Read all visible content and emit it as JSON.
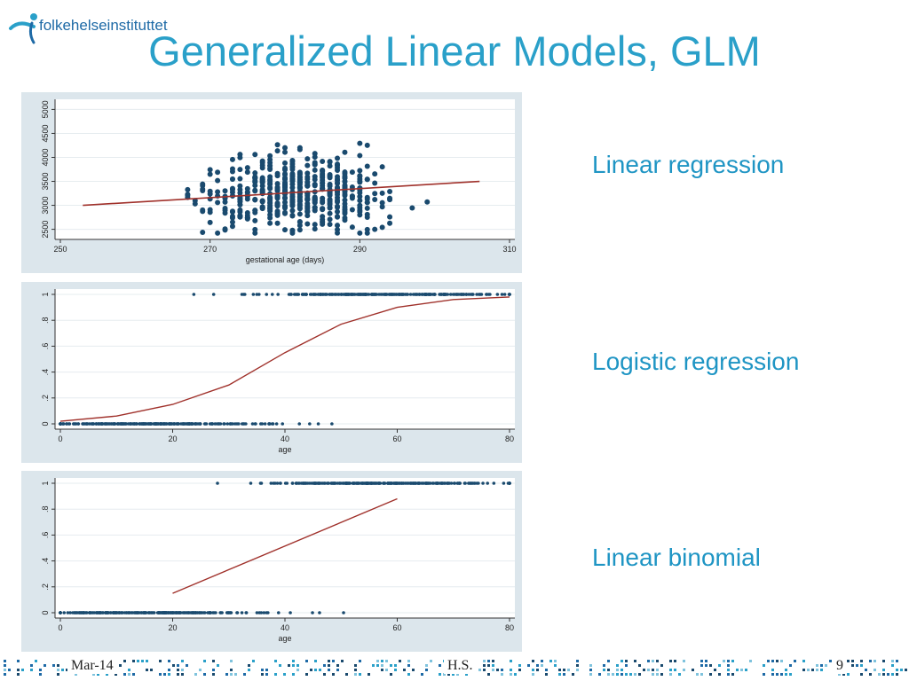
{
  "logo": {
    "text": "folkehelseinstituttet",
    "icon": "fhi-logo-icon"
  },
  "title": "Generalized Linear Models, GLM",
  "captions": {
    "linear": "Linear regression",
    "logistic": "Logistic regression",
    "binomial": "Linear binomial"
  },
  "footer": {
    "date": "Mar-14",
    "author": "H.S.",
    "page": "9"
  },
  "colors": {
    "title": "#2aa0c9",
    "caption": "#1f95c4",
    "panel_bg": "#dce6ec",
    "points": "#1a4a6e",
    "fit_line": "#a0312b"
  },
  "chart_data": [
    {
      "type": "scatter",
      "title": "",
      "xlabel": "gestational age (days)",
      "ylabel": "",
      "xlim": [
        250,
        310
      ],
      "ylim": [
        2400,
        5100
      ],
      "x_ticks": [
        250,
        270,
        290,
        310
      ],
      "y_ticks": [
        2500,
        3000,
        3500,
        4000,
        4500,
        5000
      ],
      "y_tick_labels": [
        "2500",
        "3000",
        "3500",
        "4000",
        "4500",
        "5000"
      ],
      "fit_line": {
        "x": [
          253,
          306
        ],
        "y": [
          3000,
          3500
        ]
      },
      "points": "approx. 600 observations between 253 and 306 days, weights 2400-5100 g"
    },
    {
      "type": "scatter",
      "title": "",
      "xlabel": "age",
      "ylabel": "",
      "xlim": [
        0,
        80
      ],
      "ylim": [
        0,
        1
      ],
      "x_ticks": [
        0,
        20,
        40,
        60,
        80
      ],
      "y_ticks": [
        0,
        0.2,
        0.4,
        0.6,
        0.8,
        1
      ],
      "y_tick_labels": [
        "0",
        ".2",
        ".4",
        ".6",
        ".8",
        "1"
      ],
      "curve": {
        "type": "logistic",
        "x": [
          0,
          10,
          20,
          30,
          40,
          50,
          60,
          70,
          80
        ],
        "y": [
          0.02,
          0.06,
          0.15,
          0.3,
          0.55,
          0.77,
          0.9,
          0.96,
          0.98
        ]
      },
      "points": "binary outcomes (0/1) for ages 0-80"
    },
    {
      "type": "scatter",
      "title": "",
      "xlabel": "age",
      "ylabel": "",
      "xlim": [
        0,
        80
      ],
      "ylim": [
        0,
        1
      ],
      "x_ticks": [
        0,
        20,
        40,
        60,
        80
      ],
      "y_ticks": [
        0,
        0.2,
        0.4,
        0.6,
        0.8,
        1
      ],
      "y_tick_labels": [
        "0",
        ".2",
        ".4",
        ".6",
        ".8",
        "1"
      ],
      "fit_line": {
        "x": [
          20,
          60
        ],
        "y": [
          0.15,
          0.88
        ]
      },
      "points": "binary outcomes (0/1) for ages 0-80"
    }
  ]
}
